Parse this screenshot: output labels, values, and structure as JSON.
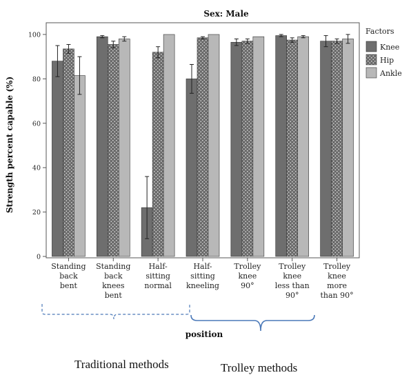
{
  "chart_data": {
    "type": "bar",
    "title": "Sex: Male",
    "xlabel": "position",
    "ylabel": "Strength percent capable (%)",
    "ylim": [
      0,
      105
    ],
    "yticks": [
      0,
      20,
      40,
      60,
      80,
      100
    ],
    "grid": false,
    "legend": {
      "title": "Factors",
      "placement": "right"
    },
    "categories": [
      [
        "Standing",
        "back",
        "bent"
      ],
      [
        "Standing",
        "back",
        "knees",
        "bent"
      ],
      [
        "Half-",
        "sitting",
        "normal"
      ],
      [
        "Half-",
        "sitting",
        "kneeling"
      ],
      [
        "Trolley",
        "knee",
        "90°"
      ],
      [
        "Trolley",
        "knee",
        "less than",
        "90°"
      ],
      [
        "Trolley",
        "knee",
        "more",
        "than 90°"
      ]
    ],
    "series": [
      {
        "name": "Knee",
        "color": "#6e6e6e",
        "pattern": "solid",
        "values": [
          88,
          99,
          22,
          80,
          96.5,
          99.5,
          97
        ],
        "errors": [
          7,
          0.5,
          14,
          6.5,
          1.5,
          0.5,
          2.5
        ]
      },
      {
        "name": "Hip",
        "color": "#6a6a6a",
        "pattern": "dots",
        "values": [
          93.5,
          95.5,
          92,
          98.5,
          97,
          97.5,
          97
        ],
        "errors": [
          2,
          1.5,
          2.5,
          0.5,
          1,
          1,
          1
        ]
      },
      {
        "name": "Ankle",
        "color": "#b8b8b8",
        "pattern": "solid",
        "values": [
          81.5,
          98,
          100,
          100,
          99,
          99,
          98
        ],
        "errors": [
          8.5,
          1,
          0,
          0,
          0,
          0.5,
          2
        ]
      }
    ]
  },
  "annotations": {
    "traditional": "Traditional methods",
    "trolley": "Trolley methods"
  }
}
